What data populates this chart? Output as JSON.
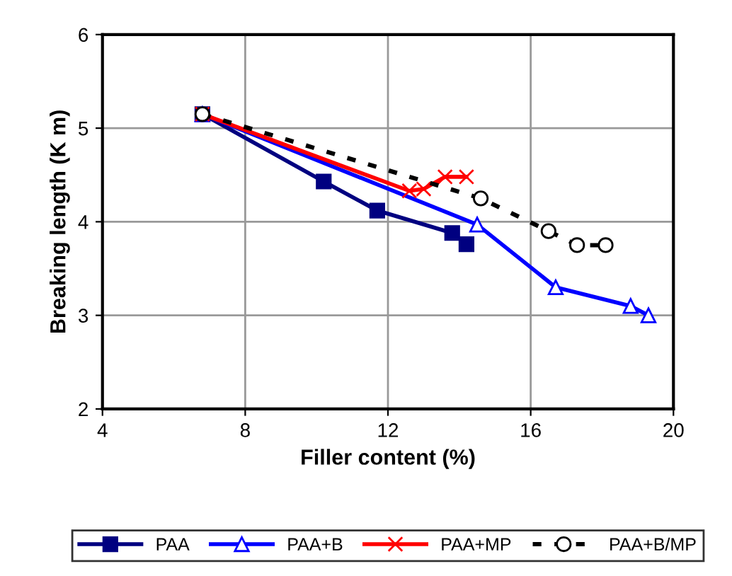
{
  "chart_data": {
    "type": "line",
    "xlabel": "Filler content (%)",
    "ylabel": "Breaking length (K m)",
    "xlim": [
      4,
      20
    ],
    "xticks": [
      4,
      8,
      12,
      16,
      20
    ],
    "ylim": [
      2,
      6
    ],
    "yticks": [
      2,
      3,
      4,
      5,
      6
    ],
    "grid": true,
    "legend": "bottom",
    "series": [
      {
        "name": "PAA",
        "color": "#000080",
        "marker": "square",
        "line_style": "solid",
        "x": [
          6.8,
          10.2,
          11.7,
          13.8,
          14.2
        ],
        "values": [
          5.15,
          4.43,
          4.12,
          3.88,
          3.76
        ]
      },
      {
        "name": "PAA+B",
        "color": "#0000ff",
        "marker": "triangle",
        "line_style": "solid",
        "x": [
          6.8,
          14.5,
          16.7,
          18.8,
          19.3
        ],
        "values": [
          5.15,
          3.97,
          3.3,
          3.1,
          3.0
        ]
      },
      {
        "name": "PAA+MP",
        "color": "#ff0000",
        "marker": "cross",
        "line_style": "solid",
        "x": [
          6.8,
          12.6,
          13.0,
          13.6,
          14.2
        ],
        "values": [
          5.15,
          4.33,
          4.35,
          4.48,
          4.48
        ]
      },
      {
        "name": "PAA+B/MP",
        "color": "#000000",
        "marker": "circle",
        "line_style": "dashed",
        "x": [
          6.8,
          14.6,
          16.5,
          17.3,
          18.1
        ],
        "values": [
          5.15,
          4.25,
          3.9,
          3.75,
          3.75
        ]
      }
    ]
  }
}
